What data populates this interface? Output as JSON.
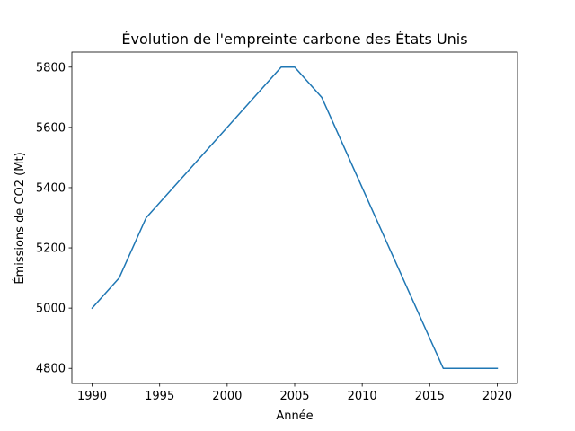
{
  "chart_data": {
    "type": "line",
    "title": "Évolution de l'empreinte carbone des États Unis",
    "xlabel": "Année",
    "ylabel": "Émissions de CO2 (Mt)",
    "x": [
      1990,
      1992,
      1994,
      2004,
      2005,
      2007,
      2016,
      2020
    ],
    "series": [
      {
        "values": [
          5000,
          5100,
          5300,
          5800,
          5800,
          5700,
          4800,
          4800
        ]
      }
    ],
    "xlim": [
      1988.5,
      2021.5
    ],
    "ylim": [
      4750,
      5850
    ],
    "xticks": [
      1990,
      1995,
      2000,
      2005,
      2010,
      2015,
      2020
    ],
    "yticks": [
      4800,
      5000,
      5200,
      5400,
      5600,
      5800
    ],
    "line_color": "#1f77b4",
    "grid": false,
    "legend": "none"
  }
}
